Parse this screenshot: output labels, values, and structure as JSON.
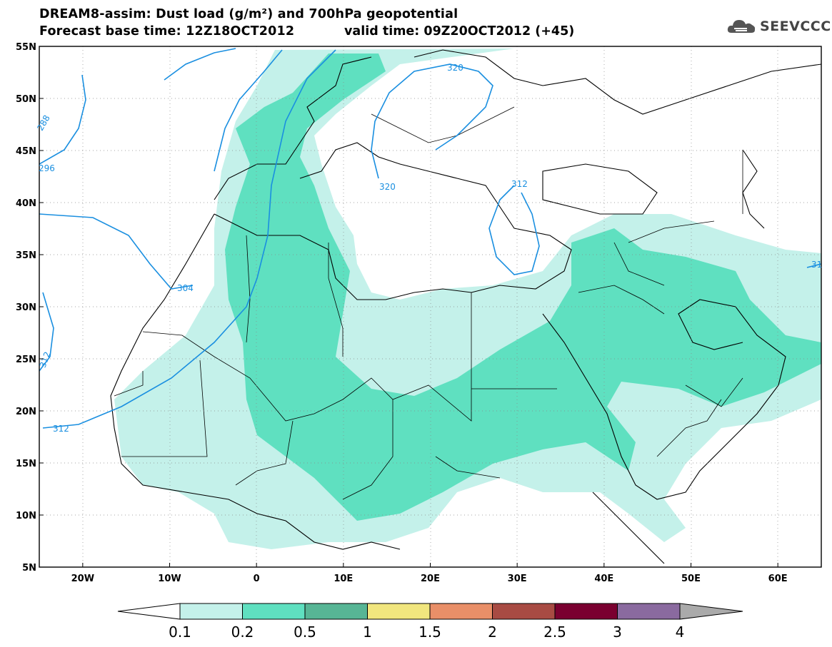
{
  "title_line1": "DREAM8-assim: Dust load (g/m²) and 700hPa geopotential",
  "title_line2": "Forecast base time: 12Z18OCT2012",
  "valid_text": "valid time: 09Z20OCT2012 (+45)",
  "logo": {
    "icon": "cloud-logo-icon",
    "text": "SEEVCCC"
  },
  "map_extent": {
    "lon_min": -25,
    "lon_max": 65,
    "lat_min": 5,
    "lat_max": 55
  },
  "lat_ticks": [
    {
      "value": 55,
      "label": "55N"
    },
    {
      "value": 50,
      "label": "50N"
    },
    {
      "value": 45,
      "label": "45N"
    },
    {
      "value": 40,
      "label": "40N"
    },
    {
      "value": 35,
      "label": "35N"
    },
    {
      "value": 30,
      "label": "30N"
    },
    {
      "value": 25,
      "label": "25N"
    },
    {
      "value": 20,
      "label": "20N"
    },
    {
      "value": 15,
      "label": "15N"
    },
    {
      "value": 10,
      "label": "10N"
    },
    {
      "value": 5,
      "label": "5N"
    }
  ],
  "lon_ticks": [
    {
      "value": -20,
      "label": "20W"
    },
    {
      "value": -10,
      "label": "10W"
    },
    {
      "value": 0,
      "label": "0"
    },
    {
      "value": 10,
      "label": "10E"
    },
    {
      "value": 20,
      "label": "20E"
    },
    {
      "value": 30,
      "label": "30E"
    },
    {
      "value": 40,
      "label": "40E"
    },
    {
      "value": 50,
      "label": "50E"
    },
    {
      "value": 60,
      "label": "60E"
    }
  ],
  "contour_labels": [
    "320",
    "320",
    "312",
    "304",
    "312",
    "288",
    "296",
    "312",
    "31"
  ],
  "colorbar": {
    "levels": [
      "0.1",
      "0.2",
      "0.5",
      "1",
      "1.5",
      "2",
      "2.5",
      "3",
      "4"
    ],
    "colors": [
      "#c4f1ea",
      "#5fe0c0",
      "#57b595",
      "#f1e67e",
      "#e98f68",
      "#a84b43",
      "#7a0030",
      "#8a6a9f",
      "#aaaaaa"
    ],
    "under_color": "#ffffff",
    "over_color": "#aaaaaa"
  },
  "colors": {
    "contour": "#1a8fe0",
    "light_dust": "#c4f1ea",
    "medium_dust": "#5fe0c0"
  }
}
